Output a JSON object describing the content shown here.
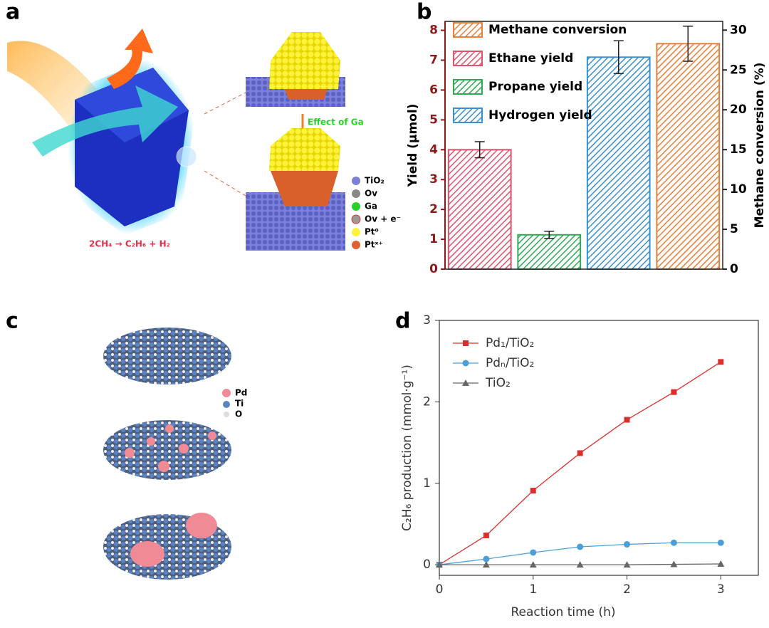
{
  "panel_labels": [
    "a",
    "b",
    "c",
    "d"
  ],
  "illustrations": {
    "a": {
      "arrow": "Effect of Ga",
      "reaction": "2CH₄ → C₂H₆ + H₂",
      "legend": [
        "TiO₂",
        "Ov",
        "Ga",
        "Ov + e⁻",
        "Pt⁰",
        "Ptˣ⁺"
      ]
    },
    "c": {
      "legend": [
        "Pd",
        "Ti",
        "O"
      ]
    }
  },
  "chart_data": [
    {
      "type": "bar",
      "ylabel": "Yield (μmol)",
      "y2label": "Methane conversion (%)",
      "categories": [
        null,
        null,
        null,
        null
      ],
      "series": [
        {
          "name": "Methane conversion",
          "color": "#e8803a",
          "axis": "y2",
          "values": [
            null,
            null,
            null,
            28.3
          ],
          "errors": [
            null,
            null,
            null,
            2.2
          ]
        },
        {
          "name": "Ethane yield",
          "color": "#e0526a",
          "values": [
            4.0,
            null,
            null,
            null
          ],
          "errors": [
            0.27,
            null,
            null,
            null
          ]
        },
        {
          "name": "Propane yield",
          "color": "#2eaa55",
          "values": [
            null,
            1.15,
            null,
            null
          ],
          "errors": [
            null,
            0.12,
            null,
            null
          ]
        },
        {
          "name": "Hydrogen yield",
          "color": "#3a8fd0",
          "values": [
            null,
            null,
            7.1,
            null
          ],
          "errors": [
            null,
            null,
            0.55,
            null
          ]
        }
      ],
      "ylim": [
        0,
        8.3
      ],
      "yticks": [
        0,
        1,
        2,
        3,
        4,
        5,
        6,
        7,
        8
      ],
      "y2lim": [
        0,
        31.1
      ],
      "y2ticks": [
        0,
        5,
        10,
        15,
        20,
        25,
        30
      ]
    },
    {
      "type": "line",
      "xlabel": "Reaction time (h)",
      "ylabel": "C₂H₆ production (mmol·g⁻¹)",
      "x": [
        0,
        0.5,
        1,
        1.5,
        2,
        2.5,
        3
      ],
      "series": [
        {
          "name": "Pd₁/TiO₂",
          "color": "#d9302e",
          "marker": "square",
          "values": [
            0,
            0.36,
            0.91,
            1.37,
            1.78,
            2.12,
            2.49
          ]
        },
        {
          "name": "Pdₙ/TiO₂",
          "color": "#4a9fd8",
          "marker": "circle",
          "values": [
            0,
            0.07,
            0.15,
            0.22,
            0.25,
            0.27,
            0.27
          ]
        },
        {
          "name": "TiO₂",
          "color": "#666666",
          "marker": "triangle",
          "values": [
            0,
            0,
            0,
            0,
            0,
            0.005,
            0.01
          ]
        }
      ],
      "xlim": [
        0,
        3.4
      ],
      "xticks": [
        0,
        1,
        2,
        3
      ],
      "ylim": [
        -0.13,
        3
      ],
      "yticks": [
        0,
        1,
        2,
        3
      ]
    }
  ]
}
